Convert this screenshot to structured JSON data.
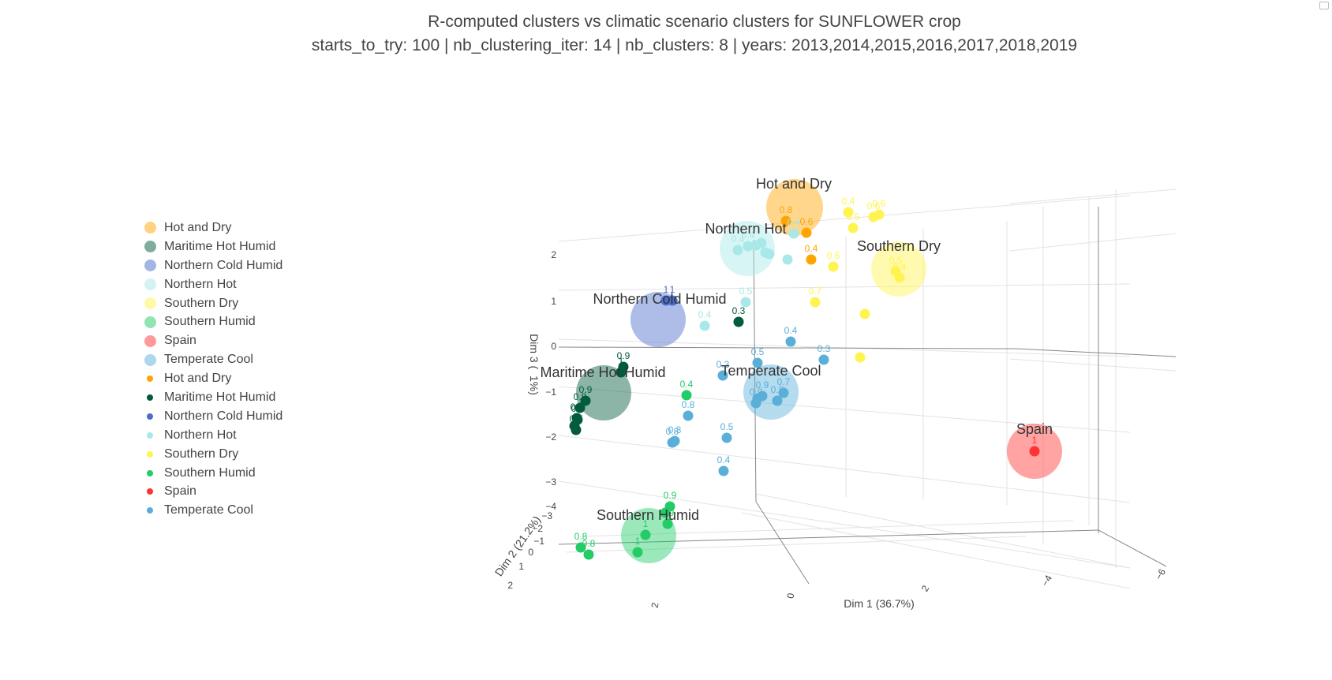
{
  "title": "R-computed clusters vs climatic scenario clusters for SUNFLOWER crop",
  "subtitle": "starts_to_try: 100 | nb_clustering_iter: 14 | nb_clusters: 8 | years: 2013,2014,2015,2016,2017,2018,2019",
  "colors": {
    "Hot and Dry": "#ffa500",
    "Maritime Hot Humid": "#005c3c",
    "Northern Cold Humid": "#4a6ccc",
    "Northern Hot": "#a8e8e8",
    "Southern Dry": "#fff44f",
    "Southern Humid": "#22cc66",
    "Spain": "#ff3333",
    "Temperate Cool": "#5aafd9"
  },
  "legend": [
    {
      "name": "Hot and Dry",
      "kind": "centroid"
    },
    {
      "name": "Maritime Hot Humid",
      "kind": "centroid"
    },
    {
      "name": "Northern Cold Humid",
      "kind": "centroid"
    },
    {
      "name": "Northern Hot",
      "kind": "centroid"
    },
    {
      "name": "Southern Dry",
      "kind": "centroid"
    },
    {
      "name": "Southern Humid",
      "kind": "centroid"
    },
    {
      "name": "Spain",
      "kind": "centroid"
    },
    {
      "name": "Temperate Cool",
      "kind": "centroid"
    },
    {
      "name": "Hot and Dry",
      "kind": "point"
    },
    {
      "name": "Maritime Hot Humid",
      "kind": "point"
    },
    {
      "name": "Northern Cold Humid",
      "kind": "point"
    },
    {
      "name": "Northern Hot",
      "kind": "point"
    },
    {
      "name": "Southern Dry",
      "kind": "point"
    },
    {
      "name": "Southern Humid",
      "kind": "point"
    },
    {
      "name": "Spain",
      "kind": "point"
    },
    {
      "name": "Temperate Cool",
      "kind": "point"
    }
  ],
  "chart_data": {
    "type": "scatter",
    "dimensions": 3,
    "axes": {
      "x": {
        "label": "Dim 1 (36.7%)",
        "ticks": [
          "2",
          "0",
          "2",
          "−4",
          "−6"
        ]
      },
      "y": {
        "label": "Dim 2 (21.2%)",
        "ticks": [
          "−3",
          "−2",
          "−1",
          "0",
          "1",
          "2"
        ]
      },
      "z": {
        "label": "Dim 3 (",
        "label_tail": "1%)",
        "ticks": [
          "2",
          "1",
          "0",
          "−1",
          "−2",
          "−3",
          "−4"
        ]
      }
    },
    "centroids": [
      {
        "name": "Hot and Dry",
        "label": "Hot and Dry"
      },
      {
        "name": "Northern Hot",
        "label": "Northern Hot"
      },
      {
        "name": "Southern Dry",
        "label": "Southern Dry"
      },
      {
        "name": "Northern Cold Humid",
        "label": "Northern Cold Humid"
      },
      {
        "name": "Maritime Hot Humid",
        "label": "Maritime Hot Humid"
      },
      {
        "name": "Temperate Cool",
        "label": "Temperate Cool"
      },
      {
        "name": "Spain",
        "label": "Spain"
      },
      {
        "name": "Southern Humid",
        "label": "Southern Humid"
      }
    ],
    "points": {
      "Hot and Dry": [
        "0.8",
        "0.6",
        "0.4"
      ],
      "Southern Dry": [
        "0.4",
        "0.5",
        "0.6",
        "0.6",
        "0.5",
        "0.4",
        "0.6",
        "0.7",
        "",
        ""
      ],
      "Northern Hot": [
        "0.4",
        "0.4",
        "",
        "",
        "",
        "",
        "0.5",
        "0.4",
        "",
        "0.4"
      ],
      "Northern Cold Humid": [
        "1",
        "1"
      ],
      "Maritime Hot Humid": [
        "0.3",
        "0.9",
        "1",
        "0.9",
        "0.9",
        "0.9",
        "",
        "0.8",
        "0.7"
      ],
      "Temperate Cool": [
        "0.4",
        "0.5",
        "0.3",
        "0.3",
        "0.8",
        "0.8",
        "0.8",
        "0.5",
        "0.4",
        "0.9",
        "0.9",
        "0.8",
        "0.7",
        ""
      ],
      "Southern Humid": [
        "0.4",
        "0.9",
        "0.9",
        "1",
        "1",
        "0.8",
        "0.8",
        ""
      ],
      "Spain": [
        "1"
      ]
    }
  }
}
